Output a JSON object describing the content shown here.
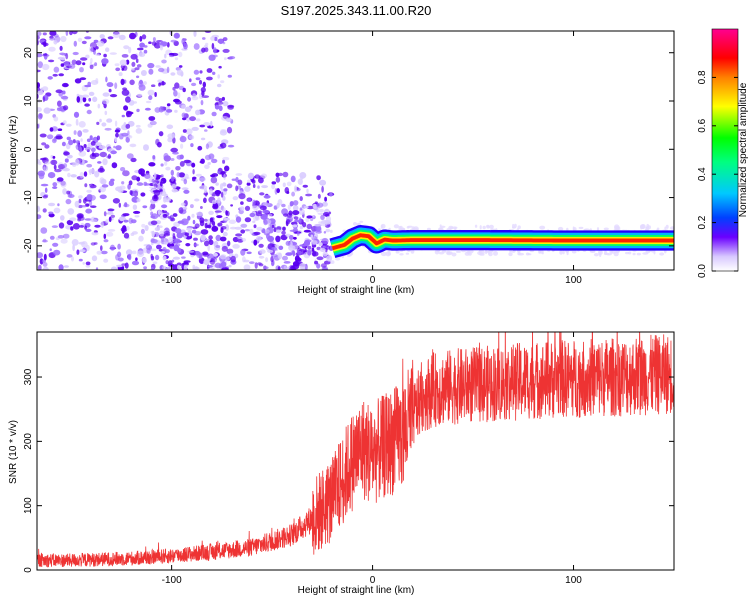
{
  "title": "S197.2025.343.11.00.R20",
  "chart_data": [
    {
      "type": "heatmap",
      "xlabel": "Height of straight line (km)",
      "ylabel": "Frequency (Hz)",
      "xlim": [
        -167,
        150
      ],
      "ylim": [
        -25,
        24.5
      ],
      "xticks": [
        -100,
        0,
        100
      ],
      "yticks": [
        -20,
        -10,
        0,
        10,
        20
      ],
      "colorbar": {
        "label": "Normalized spectral amplitude",
        "range": [
          0,
          1
        ],
        "ticks": [
          0.0,
          0.2,
          0.4,
          0.6,
          0.8
        ],
        "colormap": [
          "#ffffff",
          "#a6a6ff",
          "#3c00ff",
          "#00c8ff",
          "#00ff00",
          "#ffff00",
          "#ff0000",
          "#ff0080"
        ]
      },
      "grid": false,
      "ridge": {
        "x": [
          -20,
          -14,
          -10,
          -6,
          -2,
          2,
          6,
          10,
          20,
          50,
          100,
          150
        ],
        "y": [
          -20.5,
          -19.8,
          -18.5,
          -17.8,
          -18.0,
          -19.5,
          -18.7,
          -18.9,
          -18.8,
          -18.8,
          -18.9,
          -18.9
        ]
      }
    },
    {
      "type": "line",
      "xlabel": "Height of straight line (km)",
      "ylabel": "SNR (10 * v/v)",
      "xlim": [
        -167,
        150
      ],
      "ylim": [
        0,
        370
      ],
      "xticks": [
        -100,
        0,
        100
      ],
      "yticks": [
        0,
        100,
        200,
        300
      ],
      "color": "#ee3333",
      "grid": false,
      "trend": {
        "x": [
          -167,
          -150,
          -120,
          -100,
          -80,
          -60,
          -50,
          -40,
          -30,
          -20,
          -15,
          -10,
          -5,
          0,
          5,
          10,
          15,
          20,
          25,
          30,
          40,
          60,
          80,
          100,
          120,
          150
        ],
        "y": [
          15,
          15,
          18,
          22,
          28,
          35,
          45,
          55,
          80,
          110,
          140,
          170,
          190,
          180,
          190,
          200,
          210,
          240,
          270,
          280,
          285,
          290,
          295,
          298,
          300,
          305
        ]
      }
    }
  ]
}
